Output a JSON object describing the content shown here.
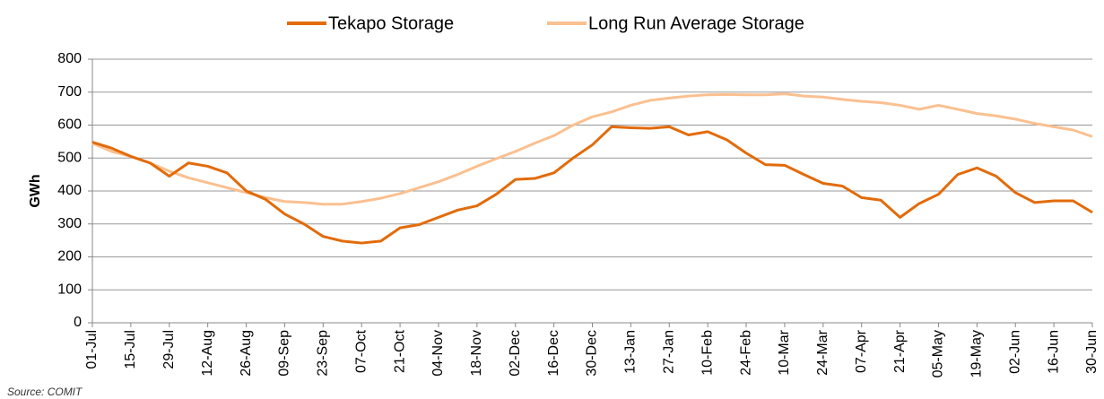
{
  "chart_data": {
    "type": "line",
    "y_label": "GWh",
    "source": "Source: COMIT",
    "categories": [
      "01-Jul",
      null,
      "15-Jul",
      null,
      "29-Jul",
      null,
      "12-Aug",
      null,
      "26-Aug",
      null,
      "09-Sep",
      null,
      "23-Sep",
      null,
      "07-Oct",
      null,
      "21-Oct",
      null,
      "04-Nov",
      null,
      "18-Nov",
      null,
      "02-Dec",
      null,
      "16-Dec",
      null,
      "30-Dec",
      null,
      "13-Jan",
      null,
      "27-Jan",
      null,
      "10-Feb",
      null,
      "24-Feb",
      null,
      "10-Mar",
      null,
      "24-Mar",
      null,
      "07-Apr",
      null,
      "21-Apr",
      null,
      "05-May",
      null,
      "19-May",
      null,
      "02-Jun",
      null,
      "16-Jun",
      null,
      "30-Jun"
    ],
    "series": [
      {
        "name": "Tekapo Storage",
        "color": "#e26b0a",
        "values": [
          548,
          530,
          505,
          485,
          445,
          485,
          475,
          455,
          400,
          375,
          330,
          300,
          262,
          248,
          242,
          248,
          288,
          298,
          320,
          342,
          355,
          390,
          435,
          438,
          455,
          500,
          540,
          595,
          592,
          590,
          595,
          570,
          580,
          555,
          515,
          480,
          478,
          450,
          423,
          415,
          380,
          372,
          320,
          362,
          390,
          450,
          470,
          445,
          395,
          365,
          370,
          370,
          335
        ]
      },
      {
        "name": "Long Run Average Storage",
        "color": "#fac090",
        "values": [
          545,
          520,
          505,
          485,
          460,
          440,
          425,
          410,
          395,
          380,
          368,
          365,
          360,
          360,
          368,
          378,
          392,
          410,
          428,
          450,
          475,
          498,
          520,
          545,
          568,
          600,
          625,
          640,
          660,
          675,
          682,
          688,
          692,
          693,
          692,
          692,
          695,
          688,
          685,
          678,
          672,
          668,
          660,
          648,
          660,
          648,
          635,
          628,
          618,
          605,
          595,
          585,
          565
        ]
      }
    ],
    "ylim": [
      0,
      800
    ],
    "yticks": [
      0,
      100,
      200,
      300,
      400,
      500,
      600,
      700,
      800
    ],
    "grid": true,
    "legend": "top"
  }
}
